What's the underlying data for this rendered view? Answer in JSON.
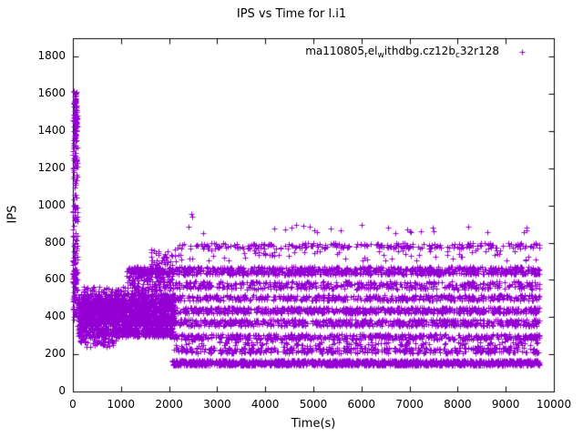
{
  "title": "IPS vs Time for l.i1",
  "axes": {
    "xlabel": "Time(s)",
    "ylabel": "IPS",
    "xlim": [
      0,
      10000
    ],
    "ylim": [
      0,
      1900
    ],
    "xticks": [
      0,
      1000,
      2000,
      3000,
      4000,
      5000,
      6000,
      7000,
      8000,
      9000,
      10000
    ],
    "yticks": [
      0,
      200,
      400,
      600,
      800,
      1000,
      1200,
      1400,
      1600,
      1800
    ]
  },
  "legend": {
    "marker": "+",
    "color": "#9400D3",
    "parts": [
      {
        "text": "ma110805",
        "sub": false
      },
      {
        "text": "r",
        "sub": true
      },
      {
        "text": "el",
        "sub": false
      },
      {
        "text": "w",
        "sub": true
      },
      {
        "text": "ithdbg.cz12b",
        "sub": false
      },
      {
        "text": "c",
        "sub": true
      },
      {
        "text": "32r128",
        "sub": false
      }
    ]
  },
  "chart_data": {
    "type": "scatter",
    "title": "IPS vs Time for l.i1",
    "xlabel": "Time(s)",
    "ylabel": "IPS",
    "xlim": [
      0,
      10000
    ],
    "ylim": [
      0,
      1900
    ],
    "grid": false,
    "legend_position": "top-right-inside",
    "series": [
      {
        "name": "ma110805_rel_withdbg.cz12b_c32r128",
        "marker": "+",
        "color": "#9400D3",
        "note": "clusters are [x0,x1,y0,y1,count] uniform bands estimated from the plot",
        "clusters": [
          [
            0,
            100,
            380,
            1620,
            150
          ],
          [
            15,
            85,
            1300,
            1600,
            50
          ],
          [
            0,
            60,
            480,
            700,
            60
          ],
          [
            100,
            2100,
            420,
            485,
            900
          ],
          [
            100,
            2100,
            350,
            415,
            700
          ],
          [
            100,
            2100,
            295,
            345,
            450
          ],
          [
            120,
            2100,
            485,
            525,
            260
          ],
          [
            150,
            900,
            240,
            290,
            45
          ],
          [
            200,
            2100,
            525,
            565,
            90
          ],
          [
            1100,
            2100,
            560,
            670,
            160
          ],
          [
            1250,
            2100,
            630,
            668,
            120
          ],
          [
            1600,
            2150,
            675,
            765,
            35
          ],
          [
            2050,
            9700,
            140,
            168,
            1500
          ],
          [
            2100,
            9700,
            205,
            238,
            450
          ],
          [
            2100,
            9700,
            245,
            268,
            120
          ],
          [
            2100,
            9700,
            278,
            308,
            550
          ],
          [
            2100,
            9700,
            352,
            388,
            650
          ],
          [
            2100,
            9700,
            420,
            452,
            750
          ],
          [
            2100,
            9700,
            488,
            518,
            480
          ],
          [
            2100,
            9700,
            550,
            592,
            480
          ],
          [
            2100,
            9700,
            628,
            670,
            900
          ],
          [
            2100,
            9700,
            700,
            762,
            70
          ],
          [
            2150,
            9700,
            768,
            798,
            260
          ],
          [
            2400,
            9700,
            850,
            900,
            26
          ],
          [
            2430,
            2480,
            940,
            958,
            2
          ]
        ]
      }
    ]
  }
}
